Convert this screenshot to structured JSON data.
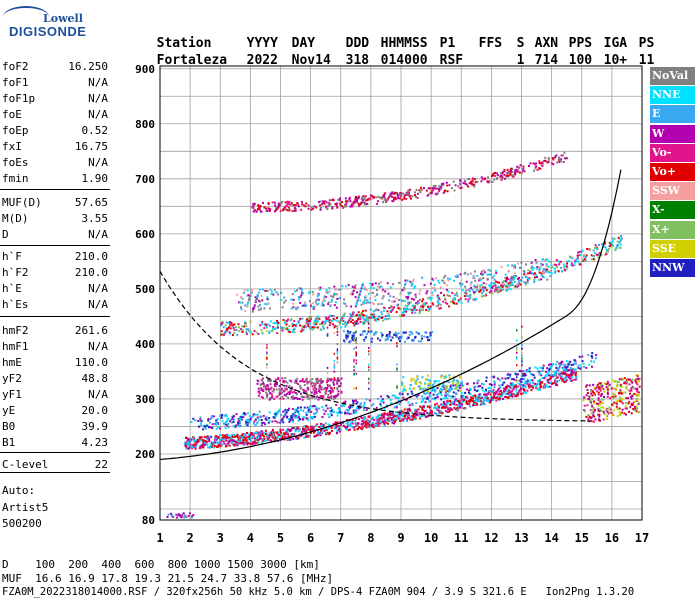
{
  "logo": {
    "line1": "Lowell",
    "line2": "DIGISONDE"
  },
  "header": {
    "labels": [
      "Station",
      "YYYY",
      "DAY",
      "DDD",
      "HHMMSS",
      "P1",
      "FFS",
      "S",
      "AXN",
      "PPS",
      "IGA",
      "PS"
    ],
    "values": [
      "Fortaleza",
      "2022",
      "Nov14",
      "318",
      "014000",
      "RSF",
      "",
      "1",
      "714",
      "100",
      "10+",
      "11"
    ]
  },
  "params": [
    {
      "k": "foF2",
      "v": "16.250"
    },
    {
      "k": "foF1",
      "v": "N/A"
    },
    {
      "k": "foF1p",
      "v": "N/A"
    },
    {
      "k": "foE",
      "v": "N/A"
    },
    {
      "k": "foEp",
      "v": "0.52"
    },
    {
      "k": "fxI",
      "v": "16.75"
    },
    {
      "k": "foEs",
      "v": "N/A"
    },
    {
      "k": "fmin",
      "v": "1.90"
    },
    {
      "k": "MUF(D)",
      "v": "57.65"
    },
    {
      "k": "M(D)",
      "v": "3.55"
    },
    {
      "k": "D",
      "v": "N/A"
    },
    {
      "k": "h`F",
      "v": "210.0"
    },
    {
      "k": "h`F2",
      "v": "210.0"
    },
    {
      "k": "h`E",
      "v": "N/A"
    },
    {
      "k": "h`Es",
      "v": "N/A"
    },
    {
      "k": "hmF2",
      "v": "261.6"
    },
    {
      "k": "hmF1",
      "v": "N/A"
    },
    {
      "k": "hmE",
      "v": "110.0"
    },
    {
      "k": "yF2",
      "v": "48.8"
    },
    {
      "k": "yF1",
      "v": "N/A"
    },
    {
      "k": "yE",
      "v": "20.0"
    },
    {
      "k": "B0",
      "v": "39.9"
    },
    {
      "k": "B1",
      "v": "4.23"
    },
    {
      "k": "C-level",
      "v": "22"
    }
  ],
  "auto": {
    "line1": "Auto:",
    "line2": "Artist5",
    "line3": "500200"
  },
  "legend": [
    {
      "label": "NoVal",
      "color": "#808080"
    },
    {
      "label": "NNE",
      "color": "#00e0ff"
    },
    {
      "label": "E",
      "color": "#3aa8f0"
    },
    {
      "label": "W",
      "color": "#b000b0"
    },
    {
      "label": "Vo-",
      "color": "#e0148c"
    },
    {
      "label": "Vo+",
      "color": "#e00000"
    },
    {
      "label": "SSW",
      "color": "#f5a0a0"
    },
    {
      "label": "X-",
      "color": "#008000"
    },
    {
      "label": "X+",
      "color": "#80c060"
    },
    {
      "label": "SSE",
      "color": "#d0d000"
    },
    {
      "label": "NNW",
      "color": "#2020c0"
    }
  ],
  "axes": {
    "y_ticks": [
      "900",
      "800",
      "700",
      "600",
      "500",
      "400",
      "300",
      "200",
      "80"
    ],
    "x_ticks": [
      "1",
      "2",
      "3",
      "4",
      "5",
      "6",
      "7",
      "8",
      "9",
      "10",
      "11",
      "12",
      "13",
      "14",
      "15",
      "16",
      "17"
    ]
  },
  "footer": {
    "line1": "D    100  200  400  600  800 1000 1500 3000 [km]",
    "line2": "MUF  16.6 16.9 17.8 19.3 21.5 24.7 33.8 57.6 [MHz]",
    "line3": "FZA0M_2022318014000.RSF / 320fx256h 50 kHz 5.0 km / DPS-4 FZA0M 904 / 3.9 S 321.6 E   Ion2Png 1.3.20"
  }
}
